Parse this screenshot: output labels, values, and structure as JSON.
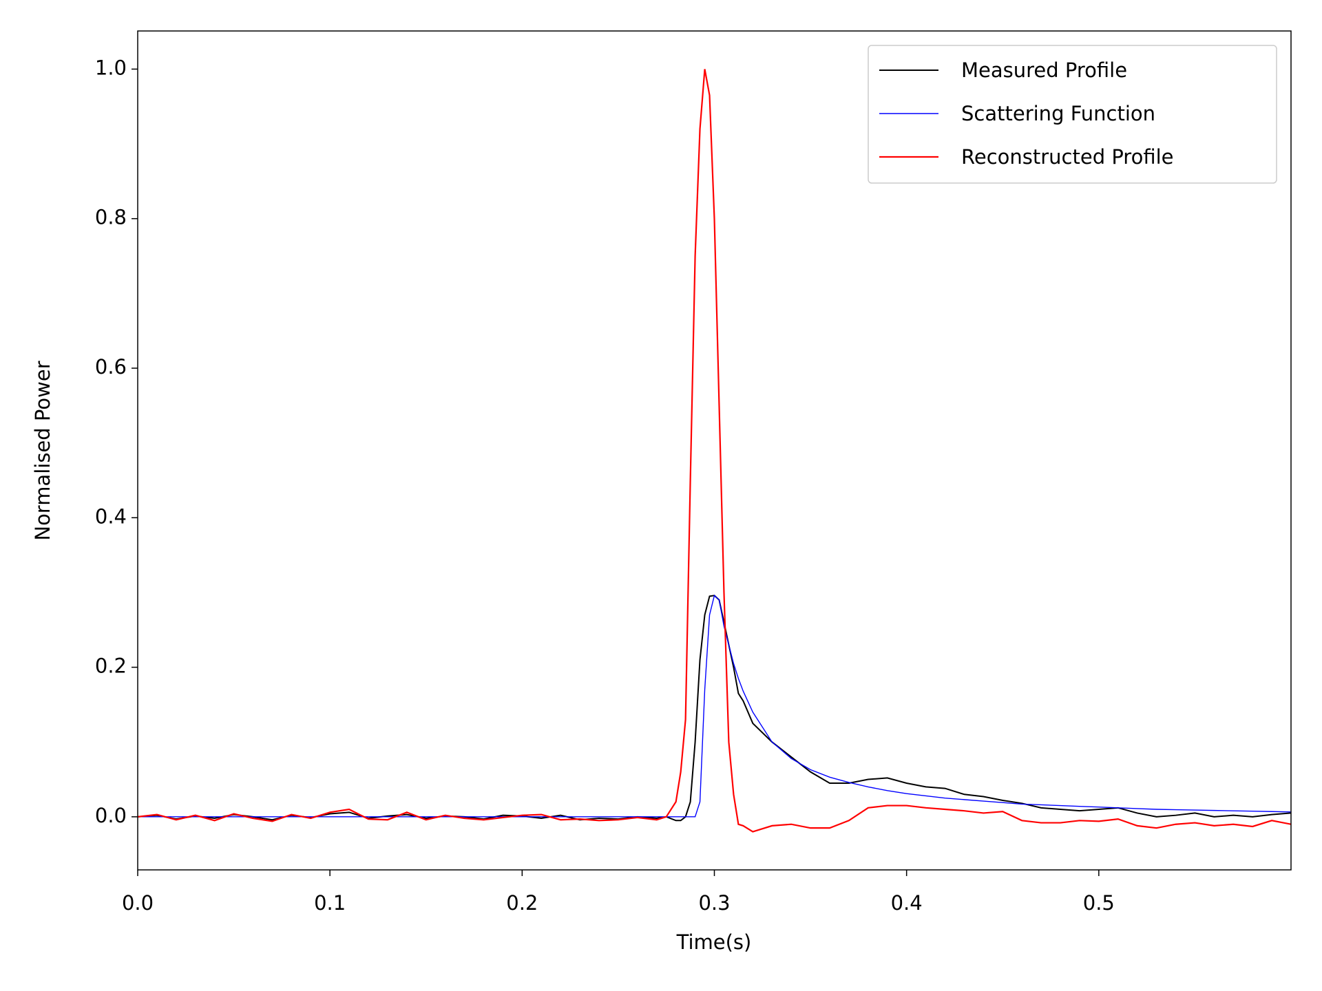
{
  "chart_data": {
    "type": "line",
    "xlabel": "Time(s)",
    "ylabel": "Normalised Power",
    "x": [
      0,
      0.01,
      0.02,
      0.03,
      0.04,
      0.05,
      0.06,
      0.07,
      0.08,
      0.09,
      0.1,
      0.11,
      0.12,
      0.13,
      0.14,
      0.15,
      0.16,
      0.17,
      0.18,
      0.19,
      0.2,
      0.21,
      0.22,
      0.23,
      0.24,
      0.25,
      0.26,
      0.27,
      0.275,
      0.28,
      0.2825,
      0.285,
      0.2875,
      0.29,
      0.2925,
      0.295,
      0.2975,
      0.3,
      0.3025,
      0.305,
      0.3075,
      0.31,
      0.3125,
      0.315,
      0.32,
      0.33,
      0.34,
      0.35,
      0.36,
      0.37,
      0.38,
      0.39,
      0.4,
      0.41,
      0.42,
      0.43,
      0.44,
      0.45,
      0.46,
      0.47,
      0.48,
      0.49,
      0.5,
      0.51,
      0.52,
      0.53,
      0.54,
      0.55,
      0.56,
      0.57,
      0.58,
      0.59,
      0.6
    ],
    "series": [
      {
        "name": "Measured Profile",
        "color": "#000000",
        "values": [
          0,
          0.002,
          -0.003,
          0.001,
          -0.002,
          0.003,
          0,
          -0.004,
          0.002,
          -0.001,
          0.004,
          0.006,
          -0.002,
          0.001,
          0.003,
          -0.002,
          0.001,
          0,
          -0.003,
          0.002,
          0.001,
          -0.002,
          0.002,
          -0.004,
          -0.002,
          -0.003,
          0,
          -0.002,
          0,
          -0.005,
          -0.005,
          0,
          0.02,
          0.1,
          0.21,
          0.27,
          0.295,
          0.296,
          0.29,
          0.26,
          0.23,
          0.2,
          0.165,
          0.155,
          0.125,
          0.1,
          0.08,
          0.06,
          0.045,
          0.045,
          0.05,
          0.052,
          0.045,
          0.04,
          0.038,
          0.03,
          0.027,
          0.022,
          0.018,
          0.012,
          0.01,
          0.008,
          0.01,
          0.012,
          0.005,
          0,
          0.002,
          0.005,
          0,
          0.002,
          0,
          0.003,
          0.005
        ]
      },
      {
        "name": "Scattering Function",
        "color": "#0000ff",
        "values": [
          0,
          0,
          0,
          0,
          0,
          0,
          0,
          0,
          0,
          0,
          0,
          0,
          0,
          0,
          0,
          0,
          0,
          0,
          0,
          0,
          0,
          0,
          0,
          0,
          0,
          0,
          0,
          0,
          0,
          0,
          0,
          0,
          0,
          0,
          0.02,
          0.17,
          0.27,
          0.296,
          0.29,
          0.255,
          0.23,
          0.205,
          0.185,
          0.168,
          0.14,
          0.1,
          0.078,
          0.063,
          0.053,
          0.046,
          0.04,
          0.035,
          0.031,
          0.028,
          0.025,
          0.023,
          0.021,
          0.019,
          0.017,
          0.016,
          0.015,
          0.014,
          0.013,
          0.012,
          0.011,
          0.01,
          0.0095,
          0.009,
          0.0085,
          0.008,
          0.0075,
          0.007,
          0.0065
        ]
      },
      {
        "name": "Reconstructed Profile",
        "color": "#ff0000",
        "values": [
          0,
          0.003,
          -0.004,
          0.002,
          -0.005,
          0.004,
          -0.002,
          -0.006,
          0.003,
          -0.002,
          0.006,
          0.01,
          -0.003,
          -0.004,
          0.006,
          -0.004,
          0.002,
          -0.002,
          -0.004,
          -0.001,
          0.002,
          0.003,
          -0.004,
          -0.003,
          -0.005,
          -0.004,
          -0.001,
          -0.004,
          0,
          0.02,
          0.06,
          0.13,
          0.45,
          0.75,
          0.92,
          1.0,
          0.965,
          0.8,
          0.55,
          0.3,
          0.1,
          0.03,
          -0.01,
          -0.012,
          -0.02,
          -0.012,
          -0.01,
          -0.015,
          -0.015,
          -0.005,
          0.012,
          0.015,
          0.015,
          0.012,
          0.01,
          0.008,
          0.005,
          0.007,
          -0.005,
          -0.008,
          -0.008,
          -0.005,
          -0.006,
          -0.003,
          -0.012,
          -0.015,
          -0.01,
          -0.008,
          -0.012,
          -0.01,
          -0.013,
          -0.005,
          -0.01
        ]
      }
    ],
    "xlim": [
      0,
      0.6
    ],
    "ylim": [
      -0.071,
      1.051
    ],
    "xticks": [
      {
        "value": 0,
        "label": "0.0"
      },
      0.1,
      0.2,
      0.3,
      0.4,
      0.5
    ],
    "yticks": [
      {
        "value": 0,
        "label": "0.0"
      },
      0.2,
      0.4,
      0.6,
      0.8,
      {
        "value": 1,
        "label": "1.0"
      }
    ],
    "grid": false,
    "legend": "upper right"
  }
}
